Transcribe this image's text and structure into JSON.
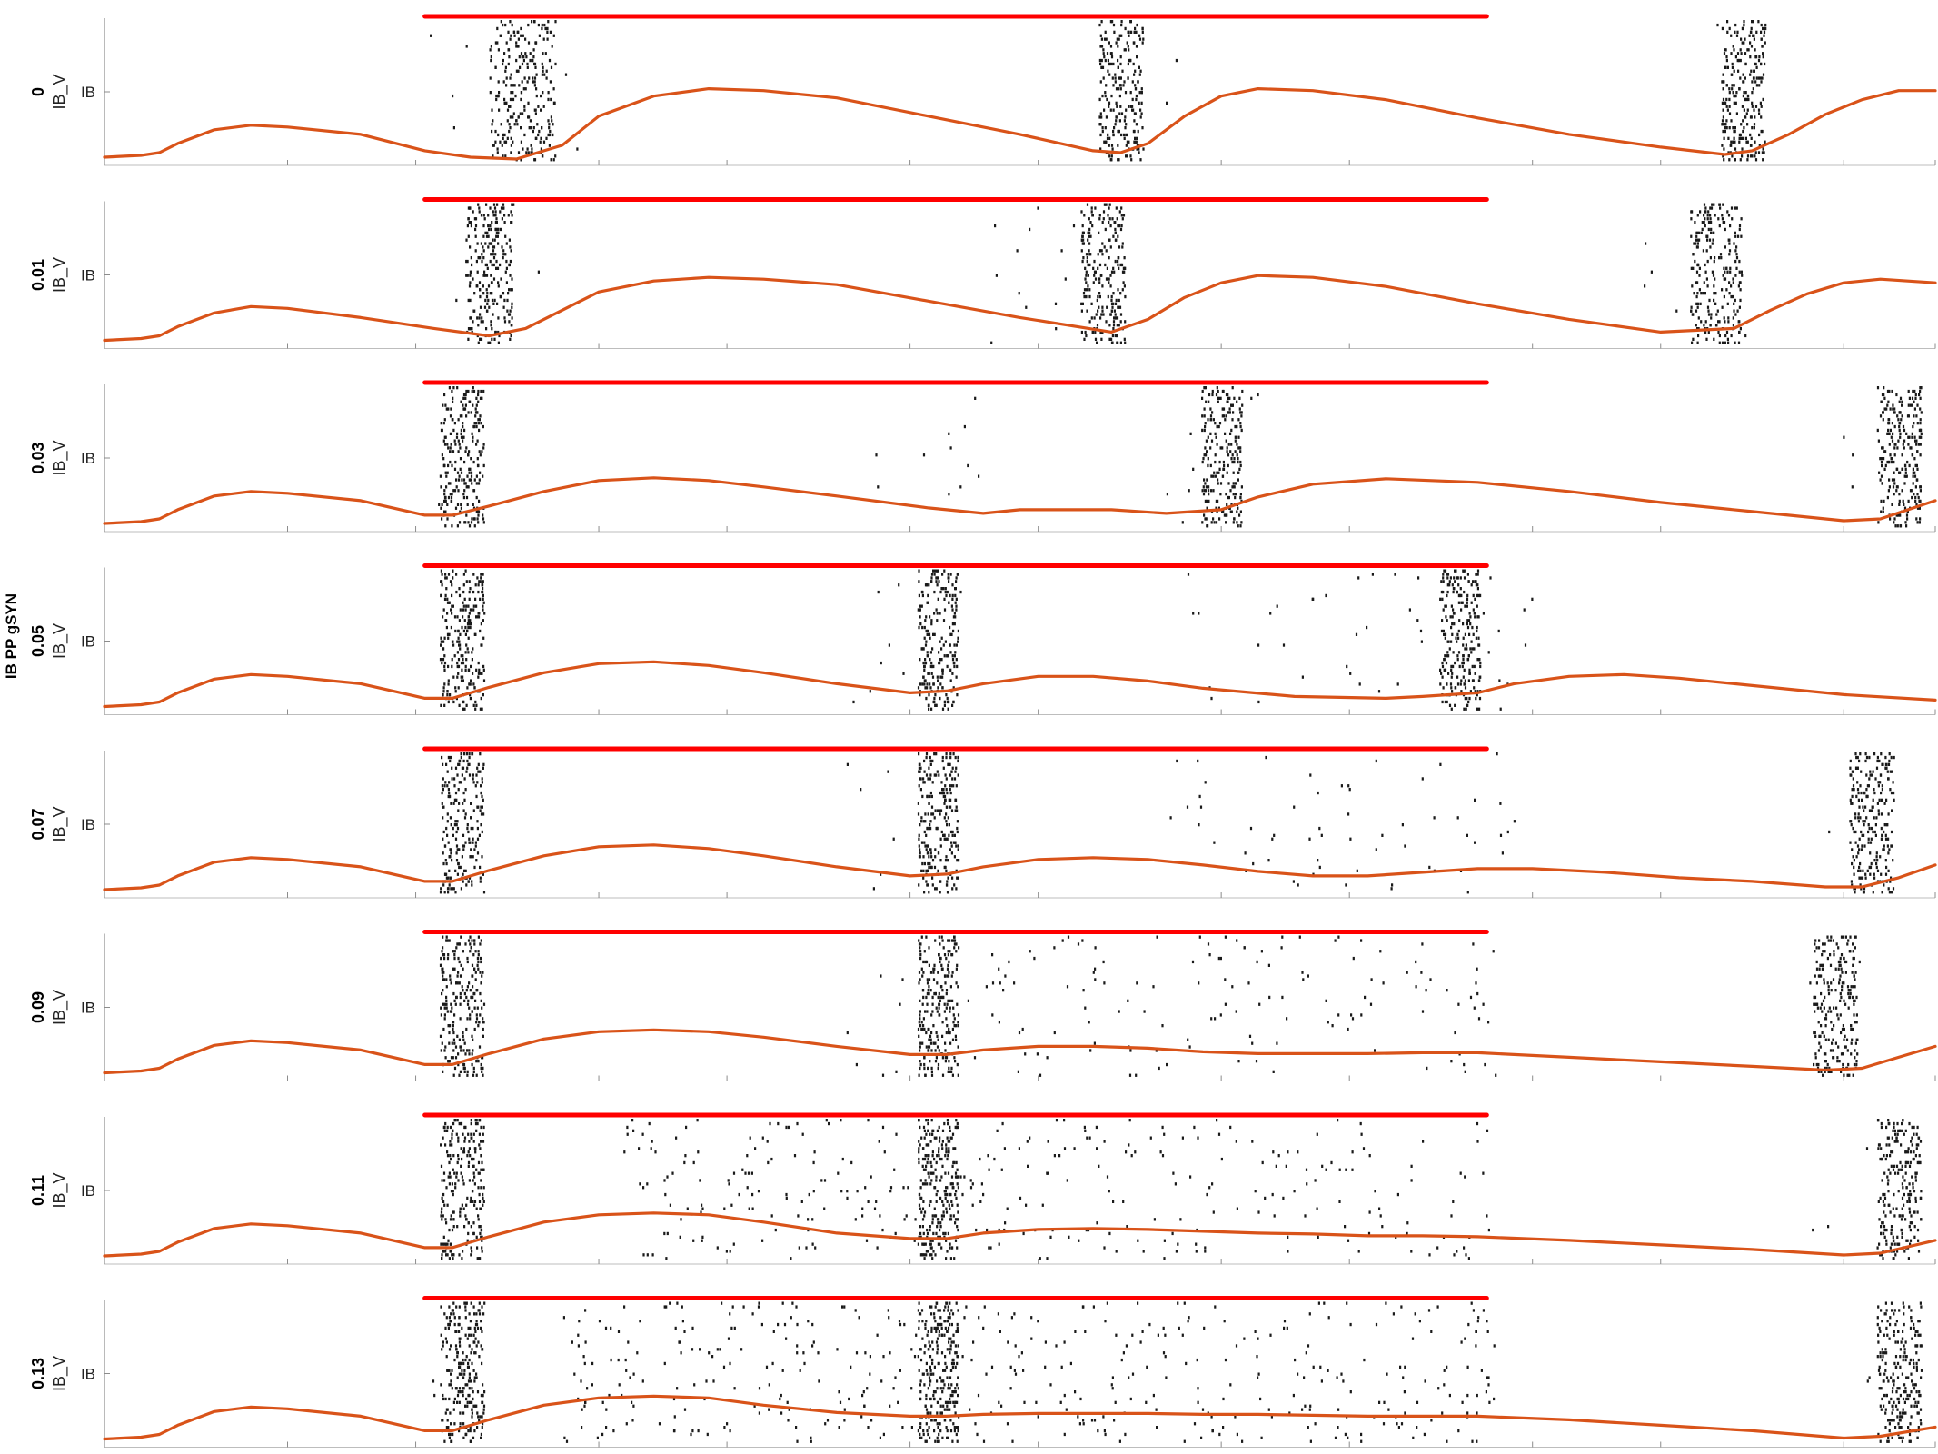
{
  "figure": {
    "ylabel": "IB PP gSYN"
  },
  "colors": {
    "raster": "#1a1a1a",
    "lfp": "#d95319",
    "stimulus": "#ff0000",
    "axis": "#8c8c8c"
  },
  "chart_data": {
    "type": "line",
    "description_of_panels": "raster of IB cell spikes with overlaid mean voltage trace (orange) and stimulus bar (red), one panel per IB PP gSYN value",
    "x_range": [
      0,
      100
    ],
    "xticks": [
      0,
      10,
      17,
      27,
      34,
      44,
      51,
      61,
      68,
      78,
      85,
      95,
      100
    ],
    "grid": false,
    "legend": "none",
    "panels": [
      {
        "param": "0",
        "variable_label": "IB_V",
        "ytick_label": "IB",
        "stimulus": [
          17.5,
          75.5
        ],
        "bursts": [
          {
            "center": 22.8,
            "width": 3.6
          },
          {
            "center": 55.5,
            "width": 2.4
          },
          {
            "center": 89.5,
            "width": 2.4
          }
        ],
        "sparse": [
          [
            17.5,
            30,
            0.2
          ],
          [
            54,
            60,
            0.3
          ],
          [
            88,
            92,
            0.4
          ]
        ],
        "lfp_x": [
          0,
          2,
          3,
          4,
          6,
          8,
          10,
          14,
          17.5,
          20,
          22.5,
          25,
          27,
          30,
          33,
          36,
          40,
          45,
          50,
          54,
          55.5,
          57,
          59,
          61,
          63,
          66,
          70,
          75,
          80,
          85,
          88.5,
          90,
          92,
          94,
          96,
          98,
          100
        ],
        "lfp_y": [
          0.05,
          0.07,
          0.1,
          0.2,
          0.35,
          0.4,
          0.38,
          0.3,
          0.12,
          0.05,
          0.03,
          0.18,
          0.5,
          0.72,
          0.8,
          0.78,
          0.7,
          0.5,
          0.3,
          0.12,
          0.1,
          0.2,
          0.5,
          0.72,
          0.8,
          0.78,
          0.68,
          0.48,
          0.3,
          0.16,
          0.08,
          0.12,
          0.3,
          0.52,
          0.68,
          0.78,
          0.78
        ]
      },
      {
        "param": "0.01",
        "variable_label": "IB_V",
        "ytick_label": "IB",
        "stimulus": [
          17.5,
          75.5
        ],
        "bursts": [
          {
            "center": 21,
            "width": 2.6
          },
          {
            "center": 54.5,
            "width": 2.4
          },
          {
            "center": 88,
            "width": 2.8
          }
        ],
        "sparse": [
          [
            17.5,
            24,
            0.35
          ],
          [
            48,
            56,
            0.9
          ],
          [
            84,
            90,
            0.5
          ]
        ],
        "lfp_x": [
          0,
          2,
          3,
          4,
          6,
          8,
          10,
          14,
          18,
          21,
          23,
          25,
          27,
          30,
          33,
          36,
          40,
          45,
          50,
          55,
          57,
          59,
          61,
          63,
          66,
          70,
          75,
          80,
          85,
          89,
          91,
          93,
          95,
          97,
          100
        ],
        "lfp_y": [
          0.05,
          0.07,
          0.1,
          0.2,
          0.35,
          0.42,
          0.4,
          0.3,
          0.18,
          0.1,
          0.18,
          0.38,
          0.58,
          0.7,
          0.74,
          0.72,
          0.66,
          0.48,
          0.3,
          0.14,
          0.28,
          0.52,
          0.68,
          0.76,
          0.74,
          0.64,
          0.45,
          0.28,
          0.14,
          0.18,
          0.38,
          0.56,
          0.68,
          0.72,
          0.68
        ]
      },
      {
        "param": "0.03",
        "variable_label": "IB_V",
        "ytick_label": "IB",
        "stimulus": [
          17.5,
          75.5
        ],
        "bursts": [
          {
            "center": 19.5,
            "width": 2.4
          },
          {
            "center": 61,
            "width": 2.2
          },
          {
            "center": 98,
            "width": 2.4
          }
        ],
        "sparse": [
          [
            17.5,
            21,
            0.2
          ],
          [
            42,
            48,
            0.8
          ],
          [
            57,
            63,
            0.8
          ],
          [
            94,
            97,
            0.4
          ]
        ],
        "lfp_x": [
          0,
          2,
          3,
          4,
          6,
          8,
          10,
          14,
          17.5,
          19,
          21,
          24,
          27,
          30,
          33,
          36,
          40,
          45,
          48,
          50,
          55,
          58,
          61,
          63,
          66,
          70,
          75,
          80,
          85,
          90,
          95,
          97,
          100
        ],
        "lfp_y": [
          0.05,
          0.07,
          0.1,
          0.2,
          0.35,
          0.4,
          0.38,
          0.3,
          0.14,
          0.14,
          0.24,
          0.4,
          0.52,
          0.55,
          0.52,
          0.45,
          0.35,
          0.22,
          0.16,
          0.2,
          0.2,
          0.16,
          0.2,
          0.34,
          0.48,
          0.54,
          0.5,
          0.4,
          0.28,
          0.18,
          0.08,
          0.1,
          0.3
        ]
      },
      {
        "param": "0.05",
        "variable_label": "IB_V",
        "ytick_label": "IB",
        "stimulus": [
          17.5,
          75.5
        ],
        "bursts": [
          {
            "center": 19.5,
            "width": 2.4
          },
          {
            "center": 45.5,
            "width": 2.2
          },
          {
            "center": 74,
            "width": 2.2
          }
        ],
        "sparse": [
          [
            17.5,
            21,
            0.2
          ],
          [
            40,
            47,
            0.6
          ],
          [
            58,
            78,
            1.0
          ]
        ],
        "lfp_x": [
          0,
          2,
          3,
          4,
          6,
          8,
          10,
          14,
          17.5,
          19,
          21,
          24,
          27,
          30,
          33,
          36,
          40,
          44,
          46,
          48,
          51,
          54,
          57,
          60,
          65,
          70,
          72,
          75,
          77,
          80,
          83,
          86,
          90,
          95,
          100
        ],
        "lfp_y": [
          0.05,
          0.07,
          0.1,
          0.2,
          0.35,
          0.4,
          0.38,
          0.3,
          0.14,
          0.14,
          0.26,
          0.42,
          0.52,
          0.54,
          0.5,
          0.42,
          0.3,
          0.2,
          0.22,
          0.3,
          0.38,
          0.38,
          0.33,
          0.25,
          0.16,
          0.14,
          0.16,
          0.2,
          0.3,
          0.38,
          0.4,
          0.36,
          0.28,
          0.18,
          0.12
        ]
      },
      {
        "param": "0.07",
        "variable_label": "IB_V",
        "ytick_label": "IB",
        "stimulus": [
          17.5,
          75.5
        ],
        "bursts": [
          {
            "center": 19.5,
            "width": 2.4
          },
          {
            "center": 45.5,
            "width": 2.2
          },
          {
            "center": 96.5,
            "width": 2.4
          }
        ],
        "sparse": [
          [
            17.5,
            21,
            0.2
          ],
          [
            40,
            47,
            0.6
          ],
          [
            58,
            77,
            1.4
          ],
          [
            93,
            97,
            0.4
          ]
        ],
        "lfp_x": [
          0,
          2,
          3,
          4,
          6,
          8,
          10,
          14,
          17.5,
          19,
          21,
          24,
          27,
          30,
          33,
          36,
          40,
          44,
          46,
          48,
          51,
          54,
          57,
          60,
          63,
          66,
          69,
          72,
          75,
          78,
          82,
          86,
          90,
          94,
          96,
          98,
          100
        ],
        "lfp_y": [
          0.05,
          0.07,
          0.1,
          0.2,
          0.35,
          0.4,
          0.38,
          0.3,
          0.14,
          0.14,
          0.26,
          0.42,
          0.52,
          0.54,
          0.5,
          0.42,
          0.3,
          0.2,
          0.22,
          0.3,
          0.38,
          0.4,
          0.38,
          0.32,
          0.25,
          0.2,
          0.2,
          0.24,
          0.28,
          0.28,
          0.24,
          0.18,
          0.14,
          0.08,
          0.08,
          0.18,
          0.32
        ]
      },
      {
        "param": "0.09",
        "variable_label": "IB_V",
        "ytick_label": "IB",
        "stimulus": [
          17.5,
          75.5
        ],
        "bursts": [
          {
            "center": 19.5,
            "width": 2.4
          },
          {
            "center": 45.5,
            "width": 2.2
          },
          {
            "center": 94.5,
            "width": 2.4
          }
        ],
        "sparse": [
          [
            17.5,
            21,
            0.2
          ],
          [
            40,
            47,
            0.6
          ],
          [
            47,
            76,
            2.2
          ],
          [
            92,
            96,
            0.3
          ]
        ],
        "lfp_x": [
          0,
          2,
          3,
          4,
          6,
          8,
          10,
          14,
          17.5,
          19,
          21,
          24,
          27,
          30,
          33,
          36,
          40,
          44,
          46,
          48,
          51,
          54,
          57,
          60,
          63,
          66,
          69,
          72,
          75,
          80,
          85,
          90,
          94,
          96,
          98,
          100
        ],
        "lfp_y": [
          0.05,
          0.07,
          0.1,
          0.2,
          0.35,
          0.4,
          0.38,
          0.3,
          0.14,
          0.14,
          0.26,
          0.42,
          0.5,
          0.52,
          0.5,
          0.44,
          0.34,
          0.25,
          0.25,
          0.3,
          0.34,
          0.34,
          0.32,
          0.28,
          0.26,
          0.26,
          0.26,
          0.27,
          0.27,
          0.22,
          0.17,
          0.12,
          0.08,
          0.1,
          0.22,
          0.34
        ]
      },
      {
        "param": "0.11",
        "variable_label": "IB_V",
        "ytick_label": "IB",
        "stimulus": [
          17.5,
          75.5
        ],
        "bursts": [
          {
            "center": 19.5,
            "width": 2.4
          },
          {
            "center": 45.5,
            "width": 2.2
          },
          {
            "center": 98,
            "width": 2.4
          }
        ],
        "sparse": [
          [
            17.5,
            21,
            0.2
          ],
          [
            28,
            76,
            3.2
          ],
          [
            93,
            97,
            0.3
          ]
        ],
        "lfp_x": [
          0,
          2,
          3,
          4,
          6,
          8,
          10,
          14,
          17.5,
          19,
          21,
          24,
          27,
          30,
          33,
          36,
          40,
          44,
          46,
          48,
          51,
          54,
          57,
          60,
          63,
          66,
          69,
          72,
          75,
          80,
          85,
          90,
          95,
          97,
          100
        ],
        "lfp_y": [
          0.05,
          0.07,
          0.1,
          0.2,
          0.35,
          0.4,
          0.38,
          0.3,
          0.14,
          0.14,
          0.26,
          0.42,
          0.5,
          0.52,
          0.5,
          0.42,
          0.3,
          0.24,
          0.24,
          0.3,
          0.34,
          0.35,
          0.34,
          0.32,
          0.3,
          0.29,
          0.27,
          0.27,
          0.26,
          0.22,
          0.17,
          0.12,
          0.06,
          0.08,
          0.22
        ]
      },
      {
        "param": "0.13",
        "variable_label": "IB_V",
        "ytick_label": "IB",
        "stimulus": [
          17.5,
          75.5
        ],
        "bursts": [
          {
            "center": 19.5,
            "width": 2.4
          },
          {
            "center": 45.5,
            "width": 2.2
          },
          {
            "center": 98,
            "width": 2.4
          }
        ],
        "sparse": [
          [
            17.5,
            21,
            0.2
          ],
          [
            25,
            76,
            4.2
          ],
          [
            94,
            97,
            0.3
          ]
        ],
        "lfp_x": [
          0,
          2,
          3,
          4,
          6,
          8,
          10,
          14,
          17.5,
          19,
          21,
          24,
          27,
          30,
          33,
          36,
          40,
          44,
          46,
          48,
          51,
          54,
          57,
          60,
          63,
          66,
          69,
          72,
          75,
          80,
          85,
          90,
          95,
          97,
          100
        ],
        "lfp_y": [
          0.05,
          0.07,
          0.1,
          0.2,
          0.35,
          0.4,
          0.38,
          0.3,
          0.14,
          0.14,
          0.26,
          0.42,
          0.5,
          0.52,
          0.5,
          0.42,
          0.34,
          0.3,
          0.3,
          0.32,
          0.33,
          0.33,
          0.33,
          0.32,
          0.32,
          0.31,
          0.3,
          0.3,
          0.3,
          0.26,
          0.2,
          0.14,
          0.06,
          0.08,
          0.18
        ]
      }
    ]
  }
}
